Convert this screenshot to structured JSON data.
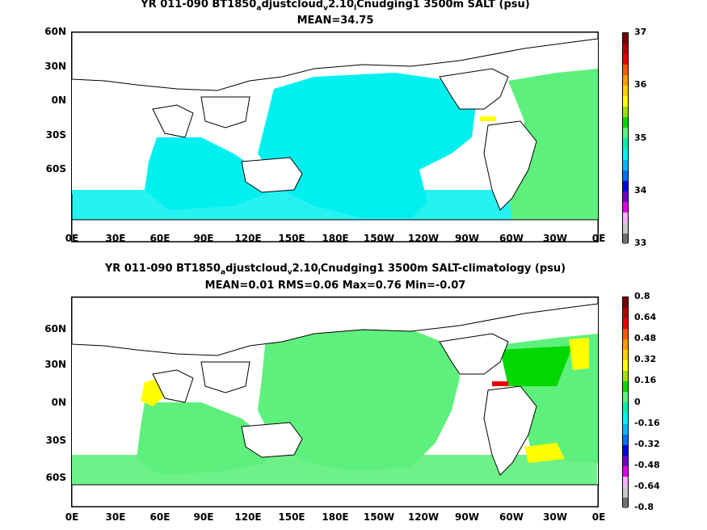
{
  "panels": [
    {
      "title_parts": [
        "YR 011-090 BT1850",
        "a",
        "djustcloud",
        "v",
        "2.10",
        "l",
        "Cnudging1 3500m SALT (psu)"
      ],
      "subtitle": "MEAN=34.75",
      "colorbar": {
        "labels": [
          "37",
          "36",
          "35",
          "34",
          "33"
        ],
        "colors": [
          "#7a0000",
          "#b30000",
          "#e60000",
          "#ff5a00",
          "#ff9a00",
          "#ffd000",
          "#ffff00",
          "#a0e010",
          "#00d800",
          "#5ef07c",
          "#00f0b0",
          "#00f0f0",
          "#00b8ff",
          "#0070ff",
          "#0000e0",
          "#7000c8",
          "#e000e0",
          "#ffb0ff",
          "#c8c8c8",
          "#707070"
        ]
      },
      "fill_colors": {
        "base": "#00f0f0",
        "secondary": "#5ef07c",
        "accent": "#ffff00"
      }
    },
    {
      "title_parts": [
        "YR 011-090 BT1850",
        "a",
        "djustcloud",
        "v",
        "2.10",
        "l",
        "Cnudging1 3500m SALT-climatology (psu)"
      ],
      "subtitle": "MEAN=0.01   RMS=0.06   Max=0.76   Min=-0.07",
      "colorbar": {
        "labels": [
          "0.8",
          "0.64",
          "0.48",
          "0.32",
          "0.16",
          "0",
          "-0.16",
          "-0.32",
          "-0.48",
          "-0.64",
          "-0.8"
        ],
        "colors": [
          "#7a0000",
          "#b30000",
          "#e60000",
          "#ff5a00",
          "#ff9a00",
          "#ffd000",
          "#ffff00",
          "#a0e010",
          "#00d800",
          "#5ef07c",
          "#00f0b0",
          "#00f0f0",
          "#00b8ff",
          "#0070ff",
          "#0000e0",
          "#7000c8",
          "#e000e0",
          "#ffb0ff",
          "#c8c8c8",
          "#707070"
        ]
      },
      "fill_colors": {
        "base": "#5ef07c",
        "secondary": "#a0e010",
        "accent": "#ffff00"
      }
    }
  ],
  "axes": {
    "x_ticks": [
      "0E",
      "30E",
      "60E",
      "90E",
      "120E",
      "150E",
      "180E",
      "150W",
      "120W",
      "90W",
      "60W",
      "30W",
      "0E"
    ],
    "y_ticks": [
      "60N",
      "30N",
      "0N",
      "30S",
      "60S"
    ]
  }
}
